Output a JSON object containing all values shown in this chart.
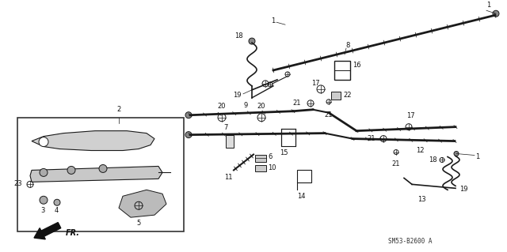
{
  "bg_color": "#ffffff",
  "diagram_code": "SM53-B2600 A",
  "fig_width": 6.4,
  "fig_height": 3.19,
  "dpi": 100,
  "line_color": "#1a1a1a",
  "label_color": "#111111",
  "label_fontsize": 6.0
}
